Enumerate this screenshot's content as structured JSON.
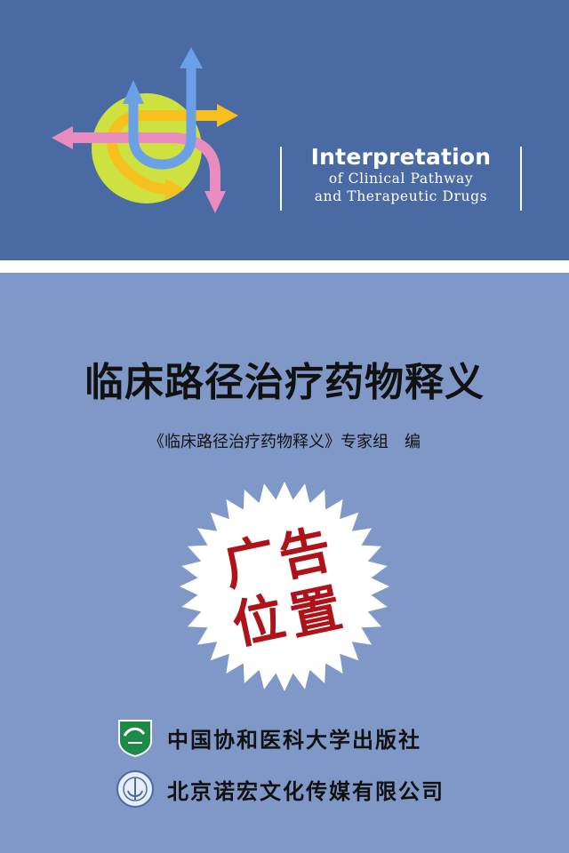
{
  "cover": {
    "english_title": "Interpretation",
    "english_line2": "of Clinical Pathway",
    "english_line3": "and Therapeutic Drugs",
    "chinese_title": "临床路径治疗药物释义",
    "author_line": "《临床路径治疗药物释义》专家组　编",
    "ad_char1": "广",
    "ad_char2": "告",
    "ad_char3": "位",
    "ad_char4": "置"
  },
  "publishers": [
    {
      "name": "中国协和医科大学出版社",
      "logo": "pumc-press-logo"
    },
    {
      "name": "北京诺宏文化传媒有限公司",
      "logo": "nuohong-media-logo"
    }
  ],
  "colors": {
    "top_band": "#4a6aa3",
    "background": "#7f98c8",
    "ad_red": "#b0121a"
  }
}
